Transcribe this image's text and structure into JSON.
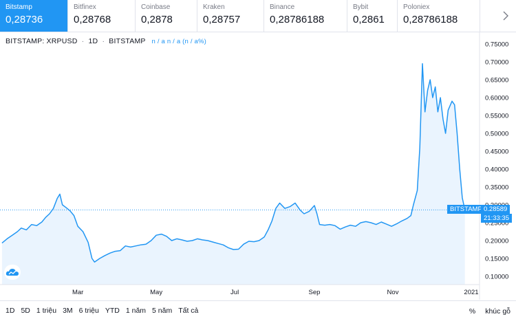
{
  "exchanges": [
    {
      "name": "Bitstamp",
      "price": "0,28736",
      "active": true
    },
    {
      "name": "Bitfinex",
      "price": "0,28768",
      "active": false
    },
    {
      "name": "Coinbase",
      "price": "0,2878",
      "active": false
    },
    {
      "name": "Kraken",
      "price": "0,28757",
      "active": false
    },
    {
      "name": "Binance",
      "price": "0,28786188",
      "active": false
    },
    {
      "name": "Bybit",
      "price": "0,2861",
      "active": false
    },
    {
      "name": "Poloniex",
      "price": "0,28786188",
      "active": false
    }
  ],
  "next_icon": "chevron-right-icon",
  "legend": {
    "symbol": "BITSTAMP: XRPUSD",
    "sep": "·",
    "interval": "1D",
    "exchange": "BITSTAMP",
    "ohlc": "n / a n / a (n / a%)"
  },
  "last_badge": {
    "label": "BITSTAMP",
    "price": "0.28589",
    "countdown": "21:33:35"
  },
  "colors": {
    "accent": "#2196f3",
    "area_fill": "#eaf4fe"
  },
  "chart_data": {
    "type": "area",
    "symbol": "XRPUSD",
    "y_ticks": [
      "0.75000",
      "0.70000",
      "0.65000",
      "0.60000",
      "0.55000",
      "0.50000",
      "0.45000",
      "0.40000",
      "0.35000",
      "0.30000",
      "0.25000",
      "0.20000",
      "0.15000",
      "0.10000"
    ],
    "x_ticks": [
      "Mar",
      "May",
      "Jul",
      "Sep",
      "Nov",
      "2021"
    ],
    "ylim": [
      0.1,
      0.75
    ],
    "grid": false,
    "points": [
      [
        "2020-01-02",
        0.193
      ],
      [
        "2020-01-06",
        0.205
      ],
      [
        "2020-01-10",
        0.215
      ],
      [
        "2020-01-14",
        0.225
      ],
      [
        "2020-01-17",
        0.235
      ],
      [
        "2020-01-21",
        0.23
      ],
      [
        "2020-01-25",
        0.245
      ],
      [
        "2020-01-29",
        0.242
      ],
      [
        "2020-02-02",
        0.252
      ],
      [
        "2020-02-05",
        0.265
      ],
      [
        "2020-02-08",
        0.275
      ],
      [
        "2020-02-11",
        0.29
      ],
      [
        "2020-02-14",
        0.318
      ],
      [
        "2020-02-16",
        0.33
      ],
      [
        "2020-02-18",
        0.3
      ],
      [
        "2020-02-21",
        0.292
      ],
      [
        "2020-02-24",
        0.283
      ],
      [
        "2020-02-27",
        0.27
      ],
      [
        "2020-03-01",
        0.24
      ],
      [
        "2020-03-05",
        0.225
      ],
      [
        "2020-03-09",
        0.195
      ],
      [
        "2020-03-12",
        0.15
      ],
      [
        "2020-03-14",
        0.14
      ],
      [
        "2020-03-18",
        0.15
      ],
      [
        "2020-03-22",
        0.158
      ],
      [
        "2020-03-26",
        0.165
      ],
      [
        "2020-03-30",
        0.17
      ],
      [
        "2020-04-03",
        0.172
      ],
      [
        "2020-04-07",
        0.185
      ],
      [
        "2020-04-11",
        0.182
      ],
      [
        "2020-04-15",
        0.185
      ],
      [
        "2020-04-19",
        0.188
      ],
      [
        "2020-04-23",
        0.19
      ],
      [
        "2020-04-27",
        0.2
      ],
      [
        "2020-05-01",
        0.215
      ],
      [
        "2020-05-05",
        0.218
      ],
      [
        "2020-05-09",
        0.212
      ],
      [
        "2020-05-13",
        0.2
      ],
      [
        "2020-05-17",
        0.205
      ],
      [
        "2020-05-21",
        0.202
      ],
      [
        "2020-05-25",
        0.198
      ],
      [
        "2020-05-29",
        0.2
      ],
      [
        "2020-06-02",
        0.205
      ],
      [
        "2020-06-06",
        0.202
      ],
      [
        "2020-06-10",
        0.2
      ],
      [
        "2020-06-14",
        0.196
      ],
      [
        "2020-06-18",
        0.192
      ],
      [
        "2020-06-22",
        0.188
      ],
      [
        "2020-06-26",
        0.18
      ],
      [
        "2020-06-30",
        0.175
      ],
      [
        "2020-07-04",
        0.176
      ],
      [
        "2020-07-08",
        0.19
      ],
      [
        "2020-07-12",
        0.198
      ],
      [
        "2020-07-16",
        0.197
      ],
      [
        "2020-07-20",
        0.2
      ],
      [
        "2020-07-24",
        0.21
      ],
      [
        "2020-07-27",
        0.23
      ],
      [
        "2020-07-30",
        0.255
      ],
      [
        "2020-08-02",
        0.29
      ],
      [
        "2020-08-05",
        0.305
      ],
      [
        "2020-08-09",
        0.29
      ],
      [
        "2020-08-13",
        0.295
      ],
      [
        "2020-08-17",
        0.305
      ],
      [
        "2020-08-21",
        0.285
      ],
      [
        "2020-08-24",
        0.275
      ],
      [
        "2020-08-28",
        0.282
      ],
      [
        "2020-09-01",
        0.298
      ],
      [
        "2020-09-03",
        0.275
      ],
      [
        "2020-09-05",
        0.245
      ],
      [
        "2020-09-09",
        0.243
      ],
      [
        "2020-09-13",
        0.245
      ],
      [
        "2020-09-17",
        0.242
      ],
      [
        "2020-09-21",
        0.232
      ],
      [
        "2020-09-25",
        0.238
      ],
      [
        "2020-09-29",
        0.243
      ],
      [
        "2020-10-03",
        0.24
      ],
      [
        "2020-10-07",
        0.25
      ],
      [
        "2020-10-11",
        0.253
      ],
      [
        "2020-10-15",
        0.25
      ],
      [
        "2020-10-19",
        0.245
      ],
      [
        "2020-10-23",
        0.252
      ],
      [
        "2020-10-27",
        0.246
      ],
      [
        "2020-10-31",
        0.24
      ],
      [
        "2020-11-04",
        0.247
      ],
      [
        "2020-11-08",
        0.255
      ],
      [
        "2020-11-12",
        0.262
      ],
      [
        "2020-11-15",
        0.27
      ],
      [
        "2020-11-17",
        0.3
      ],
      [
        "2020-11-20",
        0.34
      ],
      [
        "2020-11-22",
        0.46
      ],
      [
        "2020-11-24",
        0.695
      ],
      [
        "2020-11-26",
        0.56
      ],
      [
        "2020-11-28",
        0.62
      ],
      [
        "2020-11-30",
        0.65
      ],
      [
        "2020-12-02",
        0.6
      ],
      [
        "2020-12-04",
        0.63
      ],
      [
        "2020-12-06",
        0.56
      ],
      [
        "2020-12-08",
        0.6
      ],
      [
        "2020-12-10",
        0.54
      ],
      [
        "2020-12-12",
        0.5
      ],
      [
        "2020-12-14",
        0.565
      ],
      [
        "2020-12-17",
        0.59
      ],
      [
        "2020-12-19",
        0.58
      ],
      [
        "2020-12-21",
        0.5
      ],
      [
        "2020-12-23",
        0.4
      ],
      [
        "2020-12-25",
        0.32
      ],
      [
        "2020-12-27",
        0.286
      ]
    ],
    "last_price": 0.28589
  },
  "toolbar": {
    "ranges": [
      "1D",
      "5D",
      "1 triệu",
      "3M",
      "6 triệu",
      "YTD",
      "1 năm",
      "5 năm",
      "Tất cả"
    ],
    "percent": "%",
    "scale": "khúc gỗ"
  },
  "logo_icon": "cloud-logo-icon"
}
